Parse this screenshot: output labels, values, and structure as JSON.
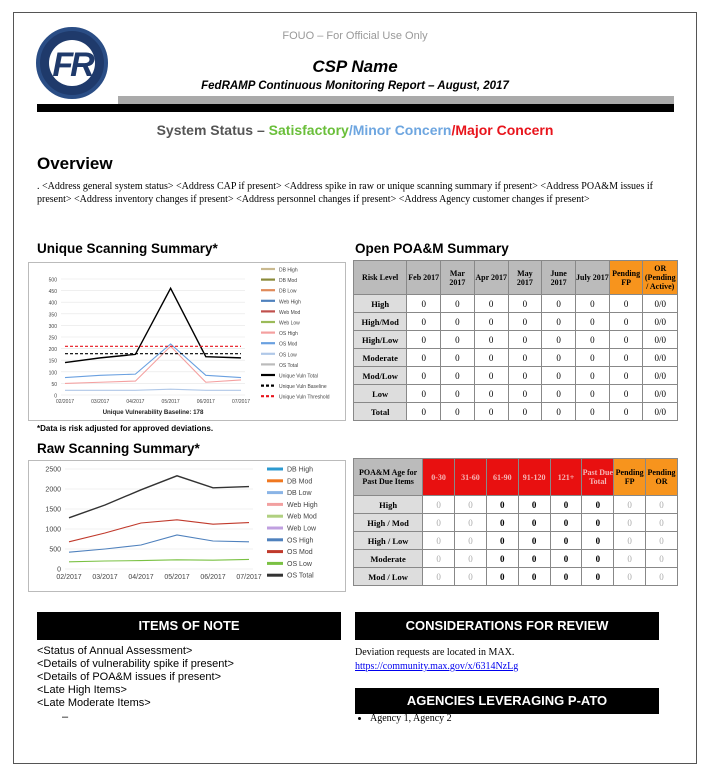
{
  "header": {
    "fouo": "FOUO – For Official Use Only",
    "logo_text": "FR",
    "csp_name": "CSP Name",
    "subtitle": "FedRAMP Continuous Monitoring Report – August, 2017"
  },
  "status": {
    "prefix": "System Status – ",
    "satisfactory": "Satisfactory",
    "slash1": "/",
    "minor": "Minor Concern",
    "slash2": "/",
    "major": "Major Concern",
    "colors": {
      "satisfactory": "#6abf3a",
      "minor": "#6ea6e0",
      "major": "#e8141c",
      "prefix": "#555555"
    }
  },
  "overview": {
    "heading": "Overview",
    "text": ". <Address general system status> <Address CAP if present> <Address spike in raw or unique scanning summary if present> <Address POA&M issues if present> <Address inventory changes if present> <Address personnel changes if present> <Address Agency customer changes if present>"
  },
  "unique_summary": {
    "heading": "Unique Scanning Summary*",
    "baseline_label": "Unique Vulnerability Baseline: 178",
    "footnote": "*Data is risk adjusted for approved deviations."
  },
  "raw_summary": {
    "heading": "Raw Scanning Summary*"
  },
  "chart_data": [
    {
      "type": "line",
      "x": [
        "02/2017",
        "03/2017",
        "04/2017",
        "05/2017",
        "06/2017",
        "07/2017"
      ],
      "ylim": [
        0,
        500
      ],
      "yticks": [
        "0",
        "50",
        "100",
        "150",
        "200",
        "250",
        "300",
        "350",
        "400",
        "450",
        "500"
      ],
      "series": [
        {
          "name": "DB High",
          "color": "#c9b98f",
          "values": [
            null,
            null,
            null,
            null,
            null,
            null
          ]
        },
        {
          "name": "DB Mod",
          "color": "#8a8a3a",
          "values": [
            null,
            null,
            null,
            null,
            null,
            null
          ]
        },
        {
          "name": "DB Low",
          "color": "#e08a5a",
          "values": [
            null,
            null,
            null,
            null,
            null,
            null
          ]
        },
        {
          "name": "Web High",
          "color": "#4f81bd",
          "values": [
            null,
            null,
            null,
            null,
            null,
            null
          ]
        },
        {
          "name": "Web Mod",
          "color": "#c0504d",
          "values": [
            null,
            null,
            null,
            null,
            null,
            null
          ]
        },
        {
          "name": "Web Low",
          "color": "#9bbb59",
          "values": [
            null,
            null,
            null,
            null,
            null,
            null
          ]
        },
        {
          "name": "OS High",
          "color": "#f4a0a0",
          "values": [
            50,
            55,
            60,
            210,
            55,
            65
          ]
        },
        {
          "name": "OS Mod",
          "color": "#6aa0e0",
          "values": [
            75,
            85,
            90,
            220,
            85,
            75
          ]
        },
        {
          "name": "OS Low",
          "color": "#b0c8e8",
          "values": [
            20,
            20,
            20,
            25,
            20,
            20
          ]
        },
        {
          "name": "OS Total",
          "color": "#bbbbbb",
          "values": [
            null,
            null,
            null,
            null,
            null,
            null
          ]
        },
        {
          "name": "Unique Vuln Total",
          "color": "#000000",
          "values": [
            140,
            160,
            175,
            460,
            165,
            160
          ]
        },
        {
          "name": "Unique Vuln Baseline",
          "color": "#000000",
          "dashed": true,
          "values": [
            178,
            178,
            178,
            178,
            178,
            178
          ]
        },
        {
          "name": "Unique Vuln Threshold",
          "color": "#e8141c",
          "dashed": true,
          "values": [
            210,
            210,
            210,
            210,
            210,
            210
          ]
        }
      ]
    },
    {
      "type": "line",
      "x": [
        "02/2017",
        "03/2017",
        "04/2017",
        "05/2017",
        "06/2017",
        "07/2017"
      ],
      "ylim": [
        0,
        2500
      ],
      "yticks": [
        "0",
        "500",
        "1000",
        "1500",
        "2000",
        "2500"
      ],
      "series": [
        {
          "name": "DB High",
          "color": "#2c9ad0",
          "values": [
            null,
            null,
            null,
            null,
            null,
            null
          ]
        },
        {
          "name": "DB Mod",
          "color": "#f07820",
          "values": [
            null,
            null,
            null,
            null,
            null,
            null
          ]
        },
        {
          "name": "DB Low",
          "color": "#8ab4e6",
          "values": [
            null,
            null,
            null,
            null,
            null,
            null
          ]
        },
        {
          "name": "Web High",
          "color": "#f2a0a0",
          "values": [
            null,
            null,
            null,
            null,
            null,
            null
          ]
        },
        {
          "name": "Web Mod",
          "color": "#b0d080",
          "values": [
            null,
            null,
            null,
            null,
            null,
            null
          ]
        },
        {
          "name": "Web Low",
          "color": "#c0a0e0",
          "values": [
            null,
            null,
            null,
            null,
            null,
            null
          ]
        },
        {
          "name": "OS High",
          "color": "#4f81bd",
          "values": [
            420,
            500,
            600,
            850,
            700,
            680
          ]
        },
        {
          "name": "OS Mod",
          "color": "#c0392b",
          "values": [
            680,
            900,
            1150,
            1230,
            1120,
            1160
          ]
        },
        {
          "name": "OS Low",
          "color": "#7ac143",
          "values": [
            180,
            200,
            210,
            230,
            220,
            240
          ]
        },
        {
          "name": "OS Total",
          "color": "#333333",
          "values": [
            1280,
            1600,
            1980,
            2330,
            2030,
            2060
          ]
        }
      ]
    }
  ],
  "open_poam": {
    "heading": "Open POA&M Summary",
    "columns": [
      "Risk Level",
      "Feb 2017",
      "Mar 2017",
      "Apr 2017",
      "May 2017",
      "June 2017",
      "July 2017",
      "Pending FP",
      "OR (Pending / Active)"
    ],
    "rows": [
      [
        "High",
        "0",
        "0",
        "0",
        "0",
        "0",
        "0",
        "0",
        "0/0"
      ],
      [
        "High/Mod",
        "0",
        "0",
        "0",
        "0",
        "0",
        "0",
        "0",
        "0/0"
      ],
      [
        "High/Low",
        "0",
        "0",
        "0",
        "0",
        "0",
        "0",
        "0",
        "0/0"
      ],
      [
        "Moderate",
        "0",
        "0",
        "0",
        "0",
        "0",
        "0",
        "0",
        "0/0"
      ],
      [
        "Mod/Low",
        "0",
        "0",
        "0",
        "0",
        "0",
        "0",
        "0",
        "0/0"
      ],
      [
        "Low",
        "0",
        "0",
        "0",
        "0",
        "0",
        "0",
        "0",
        "0/0"
      ],
      [
        "Total",
        "0",
        "0",
        "0",
        "0",
        "0",
        "0",
        "0",
        "0/0"
      ]
    ]
  },
  "poam_age": {
    "columns": [
      "POA&M Age for Past Due Items",
      "0-30",
      "31-60",
      "61-90",
      "91-120",
      "121+",
      "Past Due Total",
      "Pending FP",
      "Pending OR"
    ],
    "rows": [
      [
        "High",
        "0",
        "0",
        "0",
        "0",
        "0",
        "0",
        "0",
        "0"
      ],
      [
        "High / Mod",
        "0",
        "0",
        "0",
        "0",
        "0",
        "0",
        "0",
        "0"
      ],
      [
        "High / Low",
        "0",
        "0",
        "0",
        "0",
        "0",
        "0",
        "0",
        "0"
      ],
      [
        "Moderate",
        "0",
        "0",
        "0",
        "0",
        "0",
        "0",
        "0",
        "0"
      ],
      [
        "Mod / Low",
        "0",
        "0",
        "0",
        "0",
        "0",
        "0",
        "0",
        "0"
      ]
    ]
  },
  "items_of_note": {
    "heading": "ITEMS OF NOTE",
    "items": [
      "<Status of Annual Assessment>",
      "<Details of vulnerability spike if present>",
      "<Details of POA&M issues if present>",
      "<Late High Items>",
      "<Late Moderate Items>"
    ],
    "trailing": "–"
  },
  "considerations": {
    "heading": "CONSIDERATIONS FOR REVIEW",
    "text": "Deviation requests are located in MAX.",
    "link": "https://community.max.gov/x/6314NzLg"
  },
  "agencies": {
    "heading": "AGENCIES LEVERAGING P-ATO",
    "items": [
      "Agency 1, Agency 2"
    ]
  }
}
